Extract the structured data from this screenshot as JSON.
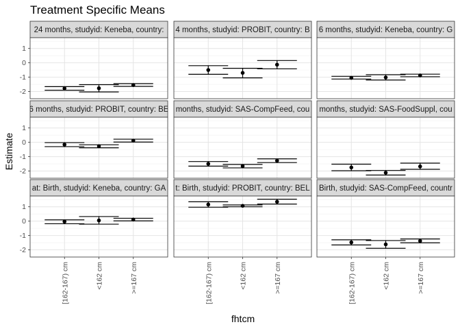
{
  "chart_data": {
    "type": "errorbar",
    "title": "Treatment Specific Means",
    "xlabel": "fhtcm",
    "ylabel": "Estimate",
    "categories": [
      "[162-167) cm",
      "<162 cm",
      ">=167 cm"
    ],
    "ylim": [
      -2.5,
      1.75
    ],
    "yticks": [
      -2,
      -1,
      0,
      1
    ],
    "ytick_labels": [
      "-2",
      "-1",
      "0",
      "1"
    ],
    "grid": true,
    "facets": [
      {
        "label": "24 months, studyid: Keneba, country:",
        "points": [
          {
            "estimate": -1.78,
            "lower": -1.91,
            "upper": -1.66
          },
          {
            "estimate": -1.77,
            "lower": -2.03,
            "upper": -1.52
          },
          {
            "estimate": -1.55,
            "lower": -1.64,
            "upper": -1.45
          }
        ]
      },
      {
        "label": "4 months, studyid: PROBIT, country: B",
        "points": [
          {
            "estimate": -0.5,
            "lower": -0.8,
            "upper": -0.2
          },
          {
            "estimate": -0.7,
            "lower": -1.05,
            "upper": -0.38
          },
          {
            "estimate": -0.13,
            "lower": -0.42,
            "upper": 0.16
          }
        ]
      },
      {
        "label": "6 months, studyid: Keneba, country: G",
        "points": [
          {
            "estimate": -1.05,
            "lower": -1.13,
            "upper": -0.94
          },
          {
            "estimate": -1.02,
            "lower": -1.2,
            "upper": -0.83
          },
          {
            "estimate": -0.88,
            "lower": -0.97,
            "upper": -0.79
          }
        ]
      },
      {
        "label": "6 months, studyid: PROBIT, country: BE",
        "points": [
          {
            "estimate": -0.16,
            "lower": -0.3,
            "upper": -0.02
          },
          {
            "estimate": -0.27,
            "lower": -0.38,
            "upper": -0.17
          },
          {
            "estimate": 0.12,
            "lower": 0.02,
            "upper": 0.22
          }
        ]
      },
      {
        "label": "months, studyid: SAS-CompFeed, cou",
        "points": [
          {
            "estimate": -1.5,
            "lower": -1.66,
            "upper": -1.34
          },
          {
            "estimate": -1.66,
            "lower": -1.78,
            "upper": -1.54
          },
          {
            "estimate": -1.28,
            "lower": -1.41,
            "upper": -1.15
          }
        ]
      },
      {
        "label": "months, studyid: SAS-FoodSuppl, cou",
        "points": [
          {
            "estimate": -1.75,
            "lower": -1.98,
            "upper": -1.52
          },
          {
            "estimate": -2.12,
            "lower": -2.28,
            "upper": -1.96
          },
          {
            "estimate": -1.68,
            "lower": -1.88,
            "upper": -1.45
          }
        ]
      },
      {
        "label": "at: Birth, studyid: Keneba, country: GA",
        "points": [
          {
            "estimate": -0.03,
            "lower": -0.18,
            "upper": 0.09
          },
          {
            "estimate": 0.05,
            "lower": -0.21,
            "upper": 0.32
          },
          {
            "estimate": 0.11,
            "lower": 0.02,
            "upper": 0.2
          }
        ]
      },
      {
        "label": "t: Birth, studyid: PROBIT, country: BEL",
        "points": [
          {
            "estimate": 1.16,
            "lower": 0.97,
            "upper": 1.35
          },
          {
            "estimate": 1.07,
            "lower": 1.0,
            "upper": 1.13
          },
          {
            "estimate": 1.35,
            "lower": 1.19,
            "upper": 1.53
          }
        ]
      },
      {
        "label": "Birth, studyid: SAS-CompFeed, countr",
        "points": [
          {
            "estimate": -1.48,
            "lower": -1.66,
            "upper": -1.3
          },
          {
            "estimate": -1.62,
            "lower": -1.89,
            "upper": -1.35
          },
          {
            "estimate": -1.38,
            "lower": -1.51,
            "upper": -1.24
          }
        ]
      }
    ]
  }
}
